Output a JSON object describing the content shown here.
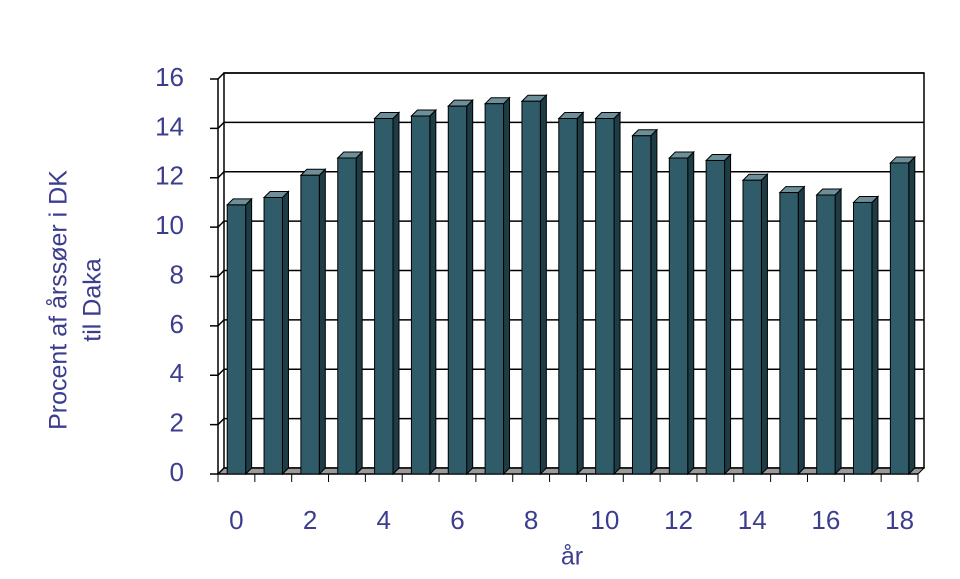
{
  "chart_data": {
    "type": "bar",
    "ylabel": [
      "Procent af årssøer i DK",
      "til Daka"
    ],
    "xlabel": "år",
    "categories": [
      "0",
      null,
      "2",
      null,
      "4",
      null,
      "6",
      null,
      "8",
      null,
      "10",
      null,
      "12",
      null,
      "14",
      null,
      "16",
      null,
      "18"
    ],
    "values": [
      10.9,
      11.2,
      12.1,
      12.8,
      14.4,
      14.5,
      14.9,
      15.0,
      15.1,
      14.4,
      14.4,
      13.7,
      12.8,
      12.7,
      11.9,
      11.4,
      11.3,
      11.0,
      12.6
    ],
    "color": "#2f5c68",
    "ylim": [
      0,
      16
    ],
    "yticks": [
      0,
      2,
      4,
      6,
      8,
      10,
      12,
      14,
      16
    ],
    "grid": true
  }
}
